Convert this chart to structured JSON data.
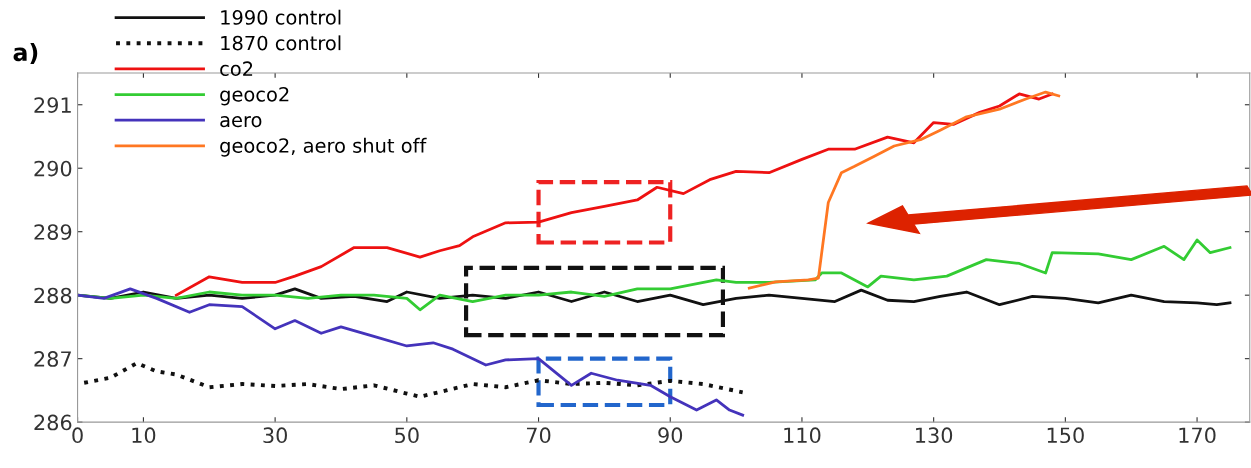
{
  "chart_data": {
    "type": "line",
    "annotations": [
      "a)"
    ],
    "xlim": [
      0,
      178
    ],
    "ylim": [
      286,
      291.5
    ],
    "xticks": [
      0,
      10,
      30,
      50,
      70,
      90,
      110,
      130,
      150,
      170
    ],
    "yticks": [
      286,
      287,
      288,
      289,
      290,
      291
    ],
    "grid": false,
    "legend": "top left",
    "marker": "none",
    "series": [
      {
        "name": "1990 control",
        "color": "#111111",
        "line_style": "solid",
        "x": [
          0,
          5,
          10,
          15,
          20,
          25,
          30,
          33,
          37,
          42,
          47,
          50,
          55,
          60,
          65,
          70,
          75,
          80,
          85,
          90,
          95,
          100,
          105,
          110,
          115,
          119,
          123,
          127,
          131,
          135,
          140,
          145,
          150,
          155,
          160,
          165,
          170,
          173,
          175
        ],
        "values": [
          288.0,
          287.95,
          288.05,
          287.95,
          288.0,
          287.95,
          288.0,
          288.1,
          287.95,
          287.98,
          287.9,
          288.05,
          287.95,
          288.0,
          287.95,
          288.05,
          287.9,
          288.05,
          287.9,
          288.0,
          287.85,
          287.95,
          288.0,
          287.95,
          287.9,
          288.08,
          287.92,
          287.9,
          287.98,
          288.05,
          287.85,
          287.98,
          287.95,
          287.88,
          288.0,
          287.9,
          287.88,
          287.85,
          287.88
        ]
      },
      {
        "name": "1870 control",
        "color": "#111111",
        "line_style": "dotted",
        "x": [
          1,
          5,
          9,
          12,
          15,
          20,
          25,
          30,
          35,
          40,
          45,
          50,
          52,
          56,
          60,
          65,
          70,
          75,
          80,
          85,
          90,
          95,
          101
        ],
        "values": [
          286.62,
          286.7,
          286.93,
          286.8,
          286.75,
          286.55,
          286.6,
          286.57,
          286.6,
          286.52,
          286.58,
          286.45,
          286.4,
          286.5,
          286.6,
          286.55,
          286.66,
          286.6,
          286.62,
          286.58,
          286.65,
          286.6,
          286.47
        ]
      },
      {
        "name": "co2",
        "color": "#ee1111",
        "line_style": "solid",
        "x": [
          15,
          20,
          25,
          30,
          33,
          37,
          42,
          47,
          52,
          55,
          58,
          60,
          65,
          70,
          75,
          80,
          85,
          88,
          92,
          96,
          100,
          105,
          110,
          114,
          118,
          123,
          127,
          130,
          133,
          137,
          140,
          143,
          146,
          148
        ],
        "values": [
          288.0,
          288.29,
          288.2,
          288.2,
          288.3,
          288.45,
          288.75,
          288.75,
          288.6,
          288.7,
          288.78,
          288.92,
          289.14,
          289.15,
          289.3,
          289.4,
          289.5,
          289.7,
          289.6,
          289.82,
          289.95,
          289.93,
          290.14,
          290.3,
          290.3,
          290.49,
          290.4,
          290.72,
          290.69,
          290.88,
          290.98,
          291.17,
          291.09,
          291.17
        ]
      },
      {
        "name": "geoco2",
        "color": "#33cc33",
        "line_style": "solid",
        "x": [
          0,
          5,
          10,
          15,
          20,
          25,
          30,
          35,
          40,
          45,
          50,
          52,
          55,
          60,
          65,
          70,
          75,
          80,
          85,
          90,
          97,
          100,
          105,
          112,
          113,
          116,
          120,
          122,
          127,
          132,
          138,
          143,
          147,
          148,
          155,
          160,
          165,
          168,
          170,
          172,
          175
        ],
        "values": [
          288.0,
          287.95,
          288.0,
          287.95,
          288.05,
          288.0,
          288.0,
          287.95,
          288.0,
          288.0,
          287.95,
          287.77,
          288.0,
          287.9,
          288.0,
          288.0,
          288.05,
          287.98,
          288.1,
          288.1,
          288.24,
          288.2,
          288.2,
          288.24,
          288.35,
          288.35,
          288.13,
          288.3,
          288.24,
          288.3,
          288.56,
          288.5,
          288.35,
          288.67,
          288.65,
          288.56,
          288.77,
          288.56,
          288.87,
          288.67,
          288.75
        ]
      },
      {
        "name": "aero",
        "color": "#4433bb",
        "line_style": "solid",
        "x": [
          0,
          4,
          8,
          12,
          17,
          20,
          25,
          30,
          33,
          37,
          40,
          45,
          50,
          54,
          57,
          62,
          65,
          70,
          75,
          78,
          82,
          87,
          90,
          94,
          97,
          99,
          101
        ],
        "values": [
          288.0,
          287.95,
          288.1,
          287.95,
          287.73,
          287.85,
          287.82,
          287.47,
          287.6,
          287.4,
          287.5,
          287.35,
          287.2,
          287.25,
          287.15,
          286.9,
          286.98,
          287.0,
          286.58,
          286.77,
          286.66,
          286.58,
          286.4,
          286.19,
          286.35,
          286.19,
          286.11
        ]
      },
      {
        "name": "geoco2, aero shut off",
        "color": "#ff7722",
        "line_style": "solid",
        "x": [
          102,
          106,
          111,
          112.5,
          114,
          116,
          118,
          121,
          124,
          128,
          131,
          135,
          140,
          144,
          147,
          149
        ],
        "values": [
          288.11,
          288.21,
          288.24,
          288.27,
          289.46,
          289.93,
          290.03,
          290.19,
          290.35,
          290.45,
          290.6,
          290.81,
          290.93,
          291.09,
          291.2,
          291.14
        ]
      }
    ]
  }
}
